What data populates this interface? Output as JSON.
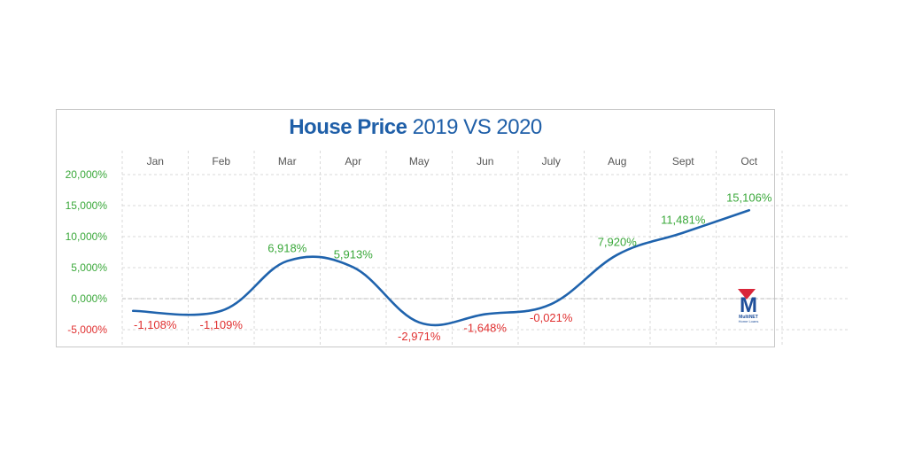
{
  "title": {
    "bold": "House Price",
    "rest": "2019 VS 2020"
  },
  "logo": {
    "letter": "M",
    "line1": "MultiNET",
    "line2": "Home Loans"
  },
  "colors": {
    "line": "#1f63ad",
    "positive": "#3aa83a",
    "negative": "#e03030",
    "axis_positive": "#3aa83a",
    "axis_negative": "#e03030",
    "month": "#555555",
    "grid": "#d9d9d9",
    "logo_blue": "#1f4f9a",
    "logo_red": "#d9263a"
  },
  "chart_data": {
    "type": "line",
    "categories": [
      "Jan",
      "Feb",
      "Mar",
      "Apr",
      "May",
      "Jun",
      "July",
      "Aug",
      "Sept",
      "Oct"
    ],
    "values": [
      -1.108,
      -1.109,
      6.918,
      5.913,
      -2.971,
      -1.648,
      -0.021,
      7.92,
      11.481,
      15.106
    ],
    "data_labels": [
      "-1,108%",
      "-1,109%",
      "6,918%",
      "5,913%",
      "-2,971%",
      "-1,648%",
      "-0,021%",
      "7,920%",
      "11,481%",
      "15,106%"
    ],
    "y_ticks": [
      20,
      15,
      10,
      5,
      0,
      -5
    ],
    "y_tick_labels": [
      "20,000%",
      "15,000%",
      "10,000%",
      "5,000%",
      "0,000%",
      "-5,000%"
    ],
    "ylim": [
      -5,
      20
    ],
    "grid": true,
    "x_labels_position": "top"
  }
}
